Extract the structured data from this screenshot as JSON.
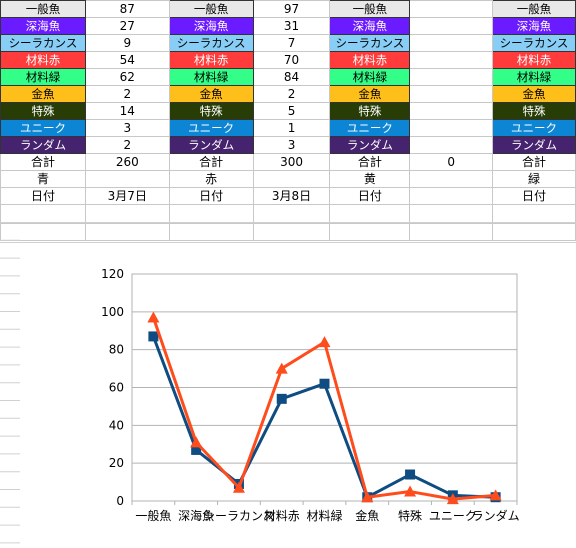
{
  "sheet": {
    "blocks": [
      {
        "total_label": "合計",
        "total": "260",
        "color_name": "青",
        "date_label": "日付",
        "date": "3月7日",
        "rows": [
          {
            "label": "一般魚",
            "value": "87",
            "bg": "#e8e8e8",
            "fg": "#000000"
          },
          {
            "label": "深海魚",
            "value": "27",
            "bg": "#6a1bff",
            "fg": "#ffffff"
          },
          {
            "label": "シーラカンス",
            "value": "9",
            "bg": "#87cdf5",
            "fg": "#000000"
          },
          {
            "label": "材料赤",
            "value": "54",
            "bg": "#ff3b3b",
            "fg": "#ffffff"
          },
          {
            "label": "材料緑",
            "value": "62",
            "bg": "#33ff88",
            "fg": "#000000"
          },
          {
            "label": "金魚",
            "value": "2",
            "bg": "#ffbf1a",
            "fg": "#000000"
          },
          {
            "label": "特殊",
            "value": "14",
            "bg": "#283d06",
            "fg": "#ffffff"
          },
          {
            "label": "ユニーク",
            "value": "3",
            "bg": "#0c85d4",
            "fg": "#ffffff"
          },
          {
            "label": "ランダム",
            "value": "2",
            "bg": "#46236f",
            "fg": "#ffffff"
          }
        ]
      },
      {
        "total_label": "合計",
        "total": "300",
        "color_name": "赤",
        "date_label": "日付",
        "date": "3月8日",
        "rows": [
          {
            "label": "一般魚",
            "value": "97",
            "bg": "#e8e8e8",
            "fg": "#000000"
          },
          {
            "label": "深海魚",
            "value": "31",
            "bg": "#6a1bff",
            "fg": "#ffffff"
          },
          {
            "label": "シーラカンス",
            "value": "7",
            "bg": "#87cdf5",
            "fg": "#000000"
          },
          {
            "label": "材料赤",
            "value": "70",
            "bg": "#ff3b3b",
            "fg": "#ffffff"
          },
          {
            "label": "材料緑",
            "value": "84",
            "bg": "#33ff88",
            "fg": "#000000"
          },
          {
            "label": "金魚",
            "value": "2",
            "bg": "#ffbf1a",
            "fg": "#000000"
          },
          {
            "label": "特殊",
            "value": "5",
            "bg": "#283d06",
            "fg": "#ffffff"
          },
          {
            "label": "ユニーク",
            "value": "1",
            "bg": "#0c85d4",
            "fg": "#ffffff"
          },
          {
            "label": "ランダム",
            "value": "3",
            "bg": "#46236f",
            "fg": "#ffffff"
          }
        ]
      },
      {
        "total_label": "合計",
        "total": "0",
        "color_name": "黄",
        "date_label": "日付",
        "date": "",
        "rows": [
          {
            "label": "一般魚",
            "value": "",
            "bg": "#e8e8e8",
            "fg": "#000000"
          },
          {
            "label": "深海魚",
            "value": "",
            "bg": "#6a1bff",
            "fg": "#ffffff"
          },
          {
            "label": "シーラカンス",
            "value": "",
            "bg": "#87cdf5",
            "fg": "#000000"
          },
          {
            "label": "材料赤",
            "value": "",
            "bg": "#ff3b3b",
            "fg": "#ffffff"
          },
          {
            "label": "材料緑",
            "value": "",
            "bg": "#33ff88",
            "fg": "#000000"
          },
          {
            "label": "金魚",
            "value": "",
            "bg": "#ffbf1a",
            "fg": "#000000"
          },
          {
            "label": "特殊",
            "value": "",
            "bg": "#283d06",
            "fg": "#ffffff"
          },
          {
            "label": "ユニーク",
            "value": "",
            "bg": "#0c85d4",
            "fg": "#ffffff"
          },
          {
            "label": "ランダム",
            "value": "",
            "bg": "#46236f",
            "fg": "#ffffff"
          }
        ]
      },
      {
        "total_label": "合計",
        "color_name": "緑",
        "date_label": "日付",
        "rows": [
          {
            "label": "一般魚",
            "bg": "#e8e8e8",
            "fg": "#000000"
          },
          {
            "label": "深海魚",
            "bg": "#6a1bff",
            "fg": "#ffffff"
          },
          {
            "label": "シーラカンス",
            "bg": "#87cdf5",
            "fg": "#000000"
          },
          {
            "label": "材料赤",
            "bg": "#ff3b3b",
            "fg": "#ffffff"
          },
          {
            "label": "材料緑",
            "bg": "#33ff88",
            "fg": "#000000"
          },
          {
            "label": "金魚",
            "bg": "#ffbf1a",
            "fg": "#000000"
          },
          {
            "label": "特殊",
            "bg": "#283d06",
            "fg": "#ffffff"
          },
          {
            "label": "ユニーク",
            "bg": "#0c85d4",
            "fg": "#ffffff"
          },
          {
            "label": "ランダム",
            "bg": "#46236f",
            "fg": "#ffffff"
          }
        ]
      }
    ]
  },
  "chart_data": {
    "type": "line",
    "categories": [
      "一般魚",
      "深海魚",
      "シーラカンス",
      "材料赤",
      "材料緑",
      "金魚",
      "特殊",
      "ユニーク",
      "ランダム"
    ],
    "series": [
      {
        "color": "#0f4c81",
        "marker": "square",
        "values": [
          87,
          27,
          9,
          54,
          62,
          2,
          14,
          3,
          2
        ]
      },
      {
        "color": "#ff4c1c",
        "marker": "triangle",
        "values": [
          97,
          31,
          7,
          70,
          84,
          2,
          5,
          1,
          3
        ]
      }
    ],
    "ylim": [
      0,
      120
    ],
    "yticks": [
      "0",
      "20",
      "40",
      "60",
      "80",
      "100",
      "120"
    ],
    "grid": true,
    "legend": "none",
    "gridline_color": "#b3b3b3"
  }
}
